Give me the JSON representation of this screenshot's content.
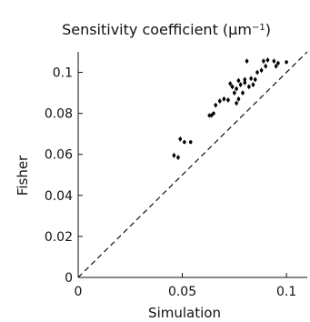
{
  "chart_data": {
    "type": "scatter",
    "title": "Sensitivity coefficient (μm",
    "title_superscript": "−1",
    "title_suffix": ")",
    "xlabel": "Simulation",
    "ylabel": "Fisher",
    "xlim": [
      0,
      0.11
    ],
    "ylim": [
      0,
      0.11
    ],
    "x_ticks": [
      0,
      0.05,
      0.1
    ],
    "x_tick_labels": [
      "0",
      "0.05",
      "0.1"
    ],
    "y_ticks": [
      0,
      0.02,
      0.04,
      0.06,
      0.08,
      0.1
    ],
    "y_tick_labels": [
      "0",
      "0.02",
      "0.04",
      "0.06",
      "0.08",
      "0.1"
    ],
    "grid": false,
    "reference_line": "y = x (dashed)",
    "points": [
      {
        "x": 0.046,
        "y": 0.0595,
        "err": 0.0012
      },
      {
        "x": 0.048,
        "y": 0.0585,
        "err": 0.0012
      },
      {
        "x": 0.049,
        "y": 0.0675,
        "err": 0.0012
      },
      {
        "x": 0.051,
        "y": 0.066,
        "err": 0.001
      },
      {
        "x": 0.054,
        "y": 0.066,
        "err": 0.001
      },
      {
        "x": 0.063,
        "y": 0.079,
        "err": 0.001
      },
      {
        "x": 0.064,
        "y": 0.079,
        "err": 0.001
      },
      {
        "x": 0.065,
        "y": 0.08,
        "err": 0.001
      },
      {
        "x": 0.066,
        "y": 0.084,
        "err": 0.0012
      },
      {
        "x": 0.068,
        "y": 0.086,
        "err": 0.0012
      },
      {
        "x": 0.07,
        "y": 0.087,
        "err": 0.0012
      },
      {
        "x": 0.072,
        "y": 0.0865,
        "err": 0.0012
      },
      {
        "x": 0.073,
        "y": 0.0945,
        "err": 0.0012
      },
      {
        "x": 0.074,
        "y": 0.093,
        "err": 0.0012
      },
      {
        "x": 0.075,
        "y": 0.09,
        "err": 0.0012
      },
      {
        "x": 0.076,
        "y": 0.085,
        "err": 0.0012
      },
      {
        "x": 0.076,
        "y": 0.092,
        "err": 0.0012
      },
      {
        "x": 0.077,
        "y": 0.096,
        "err": 0.0012
      },
      {
        "x": 0.077,
        "y": 0.087,
        "err": 0.0012
      },
      {
        "x": 0.078,
        "y": 0.094,
        "err": 0.0012
      },
      {
        "x": 0.079,
        "y": 0.09,
        "err": 0.0012
      },
      {
        "x": 0.08,
        "y": 0.095,
        "err": 0.0012
      },
      {
        "x": 0.08,
        "y": 0.0965,
        "err": 0.0012
      },
      {
        "x": 0.081,
        "y": 0.1055,
        "err": 0.0012
      },
      {
        "x": 0.082,
        "y": 0.093,
        "err": 0.0012
      },
      {
        "x": 0.083,
        "y": 0.097,
        "err": 0.0012
      },
      {
        "x": 0.084,
        "y": 0.094,
        "err": 0.0012
      },
      {
        "x": 0.085,
        "y": 0.0965,
        "err": 0.0012
      },
      {
        "x": 0.086,
        "y": 0.1,
        "err": 0.0012
      },
      {
        "x": 0.088,
        "y": 0.101,
        "err": 0.0012
      },
      {
        "x": 0.089,
        "y": 0.1055,
        "err": 0.0012
      },
      {
        "x": 0.09,
        "y": 0.103,
        "err": 0.0012
      },
      {
        "x": 0.091,
        "y": 0.106,
        "err": 0.0012
      },
      {
        "x": 0.094,
        "y": 0.1055,
        "err": 0.0012
      },
      {
        "x": 0.095,
        "y": 0.103,
        "err": 0.0012
      },
      {
        "x": 0.096,
        "y": 0.1045,
        "err": 0.0012
      },
      {
        "x": 0.1,
        "y": 0.105,
        "err": 0.001
      }
    ]
  }
}
